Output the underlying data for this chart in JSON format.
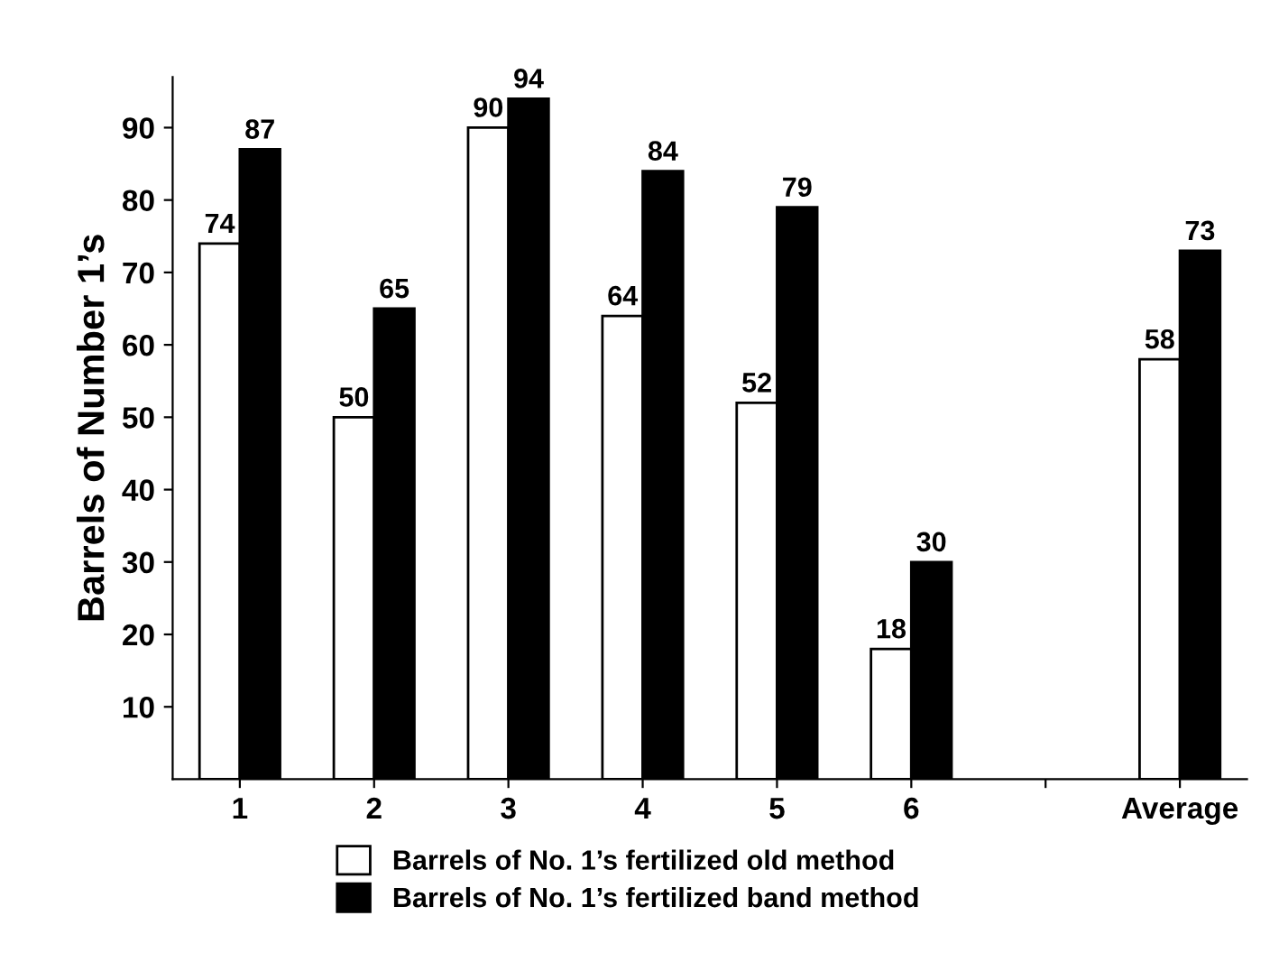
{
  "chart_data": {
    "type": "bar",
    "ylabel": "Barrels of Number 1’s",
    "categories": [
      "1",
      "2",
      "3",
      "4",
      "5",
      "6",
      null,
      "Average"
    ],
    "series": [
      {
        "name": "Barrels of No. 1’s fertilized old method",
        "color": "#ffffff",
        "values": [
          74,
          50,
          90,
          64,
          52,
          18,
          null,
          58
        ]
      },
      {
        "name": "Barrels of No. 1’s fertilized band method",
        "color": "#000000",
        "values": [
          87,
          65,
          94,
          84,
          79,
          30,
          null,
          73
        ]
      }
    ],
    "ylim": [
      0,
      97
    ],
    "yticks": [
      10,
      20,
      30,
      40,
      50,
      60,
      70,
      80,
      90
    ],
    "data_labels": true,
    "grid": false,
    "legend": "bottom"
  }
}
